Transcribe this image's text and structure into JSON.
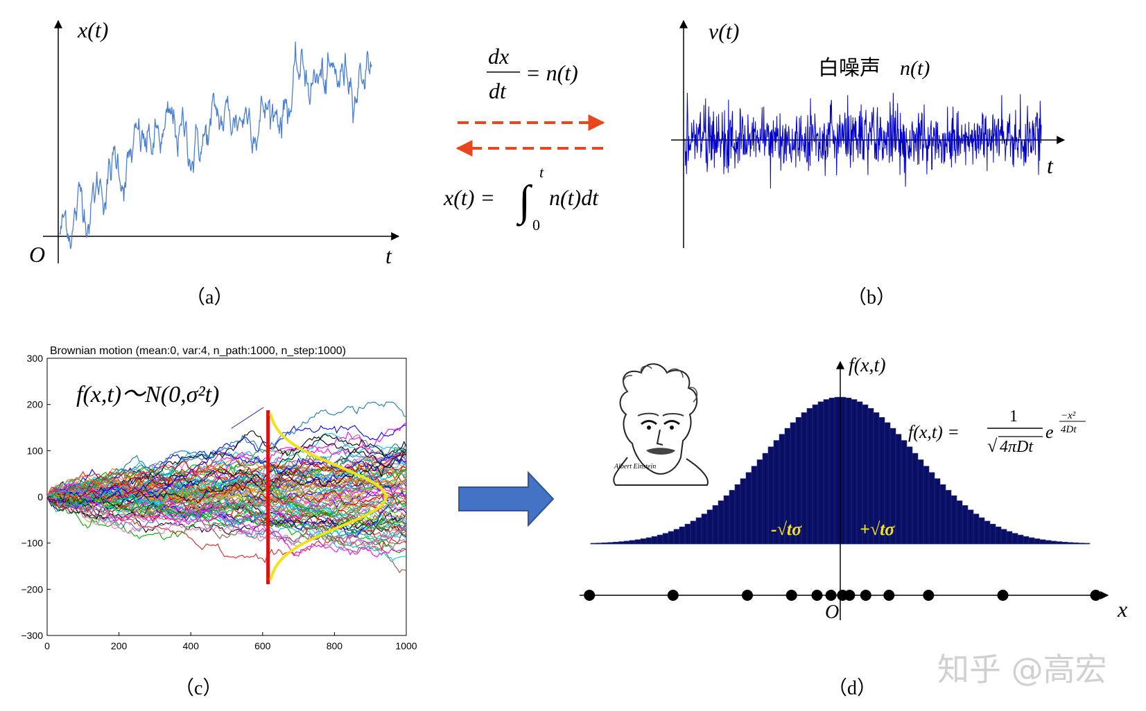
{
  "panel_a": {
    "y_label": "x(t)",
    "origin_label": "O",
    "x_label": "t",
    "caption": "（a）",
    "line_color": "#4a7fd4"
  },
  "middle": {
    "top_formula_num": "dx",
    "top_formula_den": "dt",
    "top_formula_rhs": "= n(t)",
    "bottom_formula_lhs": "x(t) =",
    "bottom_formula_upper": "t",
    "bottom_formula_lower": "0",
    "bottom_formula_rhs": "n(t)dt",
    "arrow_color": "#e8461d"
  },
  "panel_b": {
    "y_label": "v(t)",
    "noise_label": "白噪声",
    "noise_symbol": "n(t)",
    "x_label": "t",
    "caption": "（b）",
    "line_color": "#0000cc"
  },
  "panel_c": {
    "title": "Brownian motion (mean:0, var:4, n_path:1000, n_step:1000)",
    "annotation": "f(x,t)～N(0,σ²t)",
    "caption": "（c）",
    "y_ticks": [
      "300",
      "200",
      "100",
      "0",
      "−100",
      "−200",
      "−300"
    ],
    "x_ticks": [
      "0",
      "200",
      "400",
      "600",
      "800",
      "1000"
    ],
    "marker_color": "#e01010",
    "curve_color": "#f2e21a"
  },
  "panel_d": {
    "y_label": "f(x,t)",
    "formula_lhs": "f(x,t) =",
    "formula_num": "1",
    "formula_den": "4πDt",
    "formula_exp_num": "−x²",
    "formula_exp_den": "4Dt",
    "left_marker": "-√tσ",
    "right_marker": "+√tσ",
    "origin_label": "O",
    "x_label": "x",
    "caption": "（d）",
    "bar_color": "#0a0f66",
    "marker_text_color": "#f2e21a",
    "portrait_signature": "Albert Einstein"
  },
  "watermark": "知乎 @高宏",
  "chart_data": [
    {
      "type": "line",
      "title": "",
      "xlabel": "t",
      "ylabel": "x(t)",
      "series": [
        {
          "values": [
            0,
            0.9,
            1.6,
            2.3,
            2.6,
            2.9,
            3.2,
            3.0,
            3.5,
            3.9,
            4.4,
            4.1,
            4.9,
            5.3,
            4.7,
            5.6,
            6.2
          ]
        }
      ]
    },
    {
      "type": "line",
      "title": "",
      "xlabel": "t",
      "ylabel": "v(t)",
      "series": [
        {
          "values": [
            0.3,
            -0.5,
            0.8,
            -0.2,
            0.6,
            -0.9,
            0.4,
            -0.3,
            0.7,
            -0.6,
            0.2,
            -0.8,
            0.5,
            -0.1,
            0.9,
            -0.4
          ]
        }
      ]
    },
    {
      "type": "line",
      "title": "Brownian motion (mean:0, var:4, n_path:1000, n_step:1000)",
      "xlabel": "",
      "ylabel": "",
      "xlim": [
        0,
        1000
      ],
      "ylim": [
        -300,
        300
      ],
      "x_ticks": [
        0,
        200,
        400,
        600,
        800,
        1000
      ],
      "y_ticks": [
        300,
        200,
        100,
        0,
        -100,
        -200,
        -300
      ],
      "marker_x": 615
    },
    {
      "type": "bar",
      "title": "",
      "xlabel": "x",
      "ylabel": "f(x,t)",
      "distribution": "normal",
      "sample_points": [
        -5.4,
        -3.6,
        -2.0,
        -1.05,
        -0.5,
        -0.2,
        0.05,
        0.2,
        0.55,
        1.05,
        1.9,
        3.5,
        5.5
      ]
    }
  ]
}
